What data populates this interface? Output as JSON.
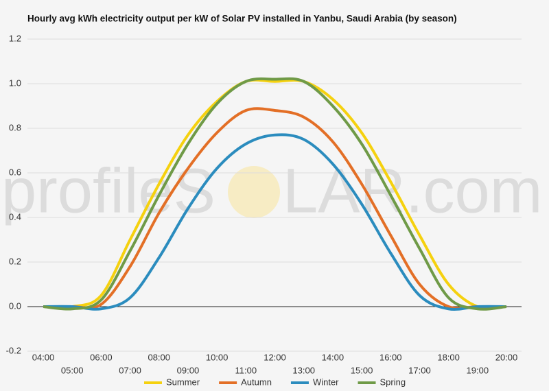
{
  "chart_data": {
    "type": "line",
    "title": "Hourly avg kWh electricity output per kW of Solar PV installed in Yanbu, Saudi Arabia (by season)",
    "watermark": [
      "profileS",
      "LAR.com"
    ],
    "categories": [
      "04:00",
      "05:00",
      "06:00",
      "07:00",
      "08:00",
      "09:00",
      "10:00",
      "11:00",
      "12:00",
      "13:00",
      "14:00",
      "15:00",
      "16:00",
      "17:00",
      "18:00",
      "19:00",
      "20:00"
    ],
    "series": [
      {
        "name": "Summer",
        "color": "#f5d10f",
        "values": [
          0,
          0,
          0.05,
          0.3,
          0.55,
          0.77,
          0.92,
          1.01,
          1.01,
          1.01,
          0.93,
          0.78,
          0.56,
          0.32,
          0.1,
          0.0,
          0
        ]
      },
      {
        "name": "Autumn",
        "color": "#e36f26",
        "values": [
          0,
          0,
          0.01,
          0.18,
          0.42,
          0.62,
          0.78,
          0.88,
          0.88,
          0.85,
          0.74,
          0.55,
          0.32,
          0.1,
          0.0,
          0,
          0
        ]
      },
      {
        "name": "Winter",
        "color": "#2b8cbe",
        "values": [
          0,
          0,
          -0.01,
          0.04,
          0.22,
          0.44,
          0.62,
          0.73,
          0.77,
          0.75,
          0.64,
          0.46,
          0.24,
          0.05,
          -0.01,
          0,
          0
        ]
      },
      {
        "name": "Spring",
        "color": "#6f9a47",
        "values": [
          0,
          -0.01,
          0.03,
          0.25,
          0.5,
          0.73,
          0.91,
          1.01,
          1.02,
          1.01,
          0.9,
          0.73,
          0.5,
          0.26,
          0.04,
          -0.01,
          0
        ]
      }
    ],
    "ylim": [
      -0.2,
      1.2
    ],
    "yticks": [
      -0.2,
      {
        "value": 0,
        "label": "0.0"
      },
      0.2,
      0.4,
      0.6,
      0.8,
      {
        "value": 1,
        "label": "1.0"
      },
      1.2
    ],
    "grid": true
  }
}
